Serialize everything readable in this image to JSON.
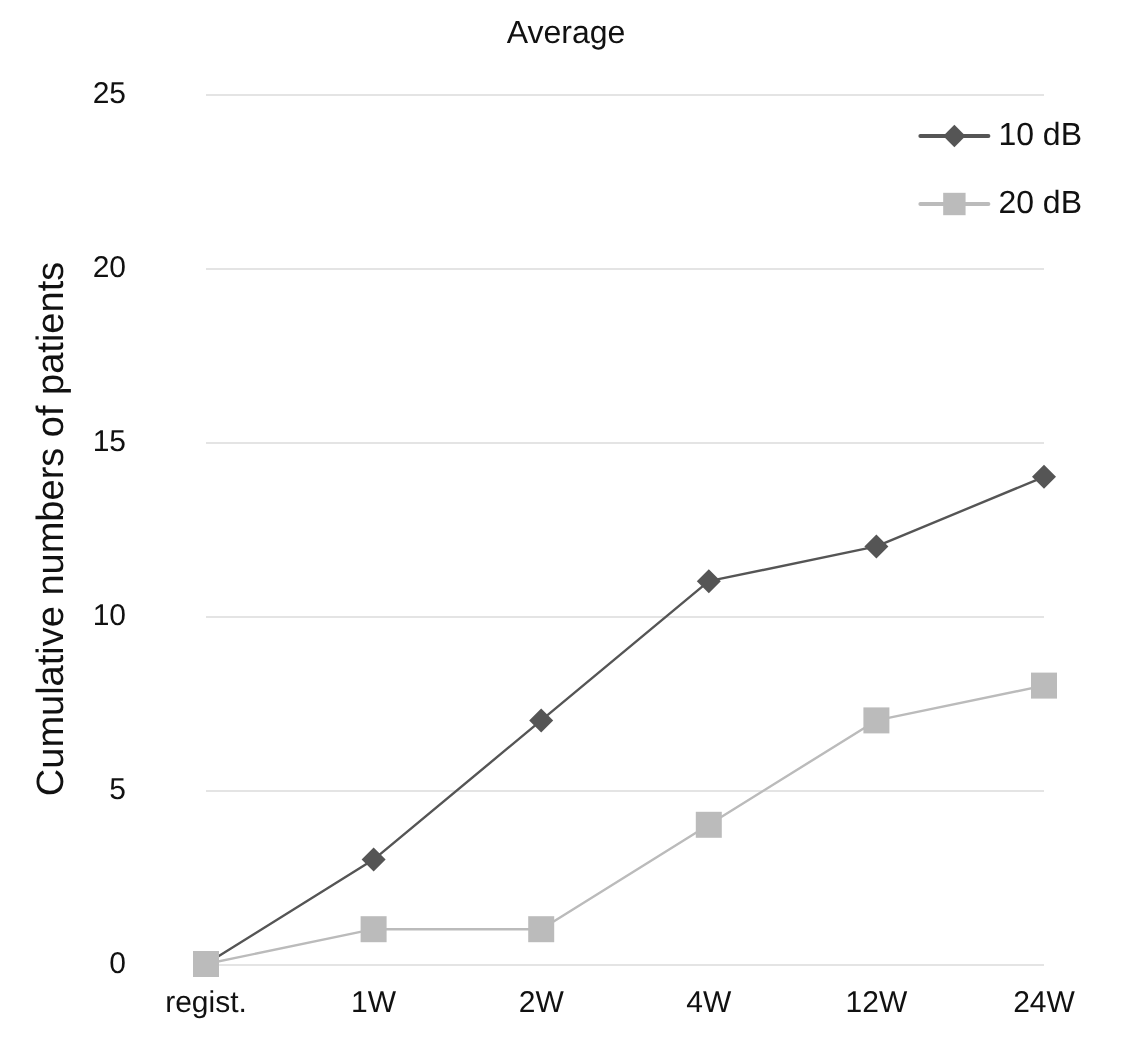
{
  "chart_data": {
    "type": "line",
    "title": "Average",
    "ylabel": "Cumulative numbers of patients",
    "categories": [
      "regist.",
      "1W",
      "2W",
      "4W",
      "12W",
      "24W"
    ],
    "series": [
      {
        "name": "10 dB",
        "color": "#555555",
        "marker": "diamond",
        "values": [
          0,
          3,
          7,
          11,
          12,
          14
        ]
      },
      {
        "name": "20 dB",
        "color": "#bbbbbb",
        "marker": "square",
        "values": [
          0,
          1,
          1,
          4,
          7,
          8
        ]
      }
    ],
    "ylim": [
      0,
      25
    ],
    "yticks": [
      0,
      5,
      10,
      15,
      20,
      25
    ],
    "grid": "y",
    "legend": "top right",
    "line_style": "solid"
  }
}
